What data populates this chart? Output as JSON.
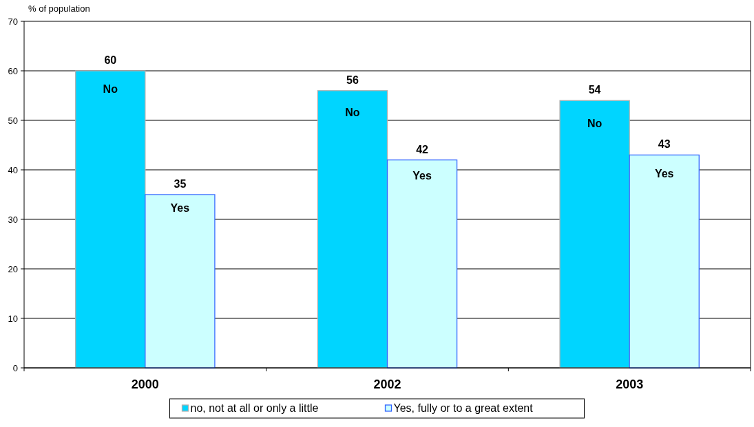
{
  "chart_data": {
    "type": "bar",
    "ylabel": "% of population",
    "categories": [
      "2000",
      "2002",
      "2003"
    ],
    "series": [
      {
        "name": "no, not at all or only a little",
        "color": "#00d5ff",
        "values": [
          60,
          56,
          54
        ]
      },
      {
        "name": "Yes, fully or to a great extent",
        "color": "#ccffff",
        "values": [
          35,
          42,
          43
        ]
      }
    ],
    "ylim": [
      0,
      70
    ],
    "yticks": [
      0,
      10,
      20,
      30,
      40,
      50,
      60,
      70
    ],
    "grid": "y",
    "legend": "bottom",
    "data_labels": true,
    "annotations": [
      {
        "text": "No",
        "x": "2000",
        "y": 56.3
      },
      {
        "text": "Yes",
        "x": "2000",
        "y": 32.3
      },
      {
        "text": "No",
        "x": "2002",
        "y": 51.6
      },
      {
        "text": "Yes",
        "x": "2002",
        "y": 38.8
      },
      {
        "text": "No",
        "x": "2003",
        "y": 49.4
      },
      {
        "text": "Yes",
        "x": "2003",
        "y": 39.3
      }
    ]
  }
}
